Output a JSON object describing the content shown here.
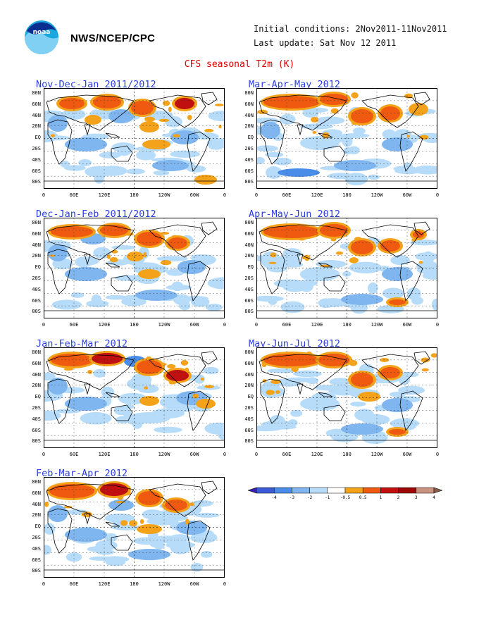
{
  "header": {
    "org": "NWS/NCEP/CPC",
    "initial_conditions": "Initial conditions: 2Nov2011-11Nov2011",
    "last_update": "Last update: Sat Nov 12 2011",
    "title": "CFS seasonal T2m (K)"
  },
  "logo": {
    "text": "noaa"
  },
  "axes": {
    "lat_ticks": [
      "80N",
      "60N",
      "40N",
      "20N",
      "EQ",
      "20S",
      "40S",
      "60S",
      "80S"
    ],
    "lon_ticks": [
      "0",
      "60E",
      "120E",
      "180",
      "120W",
      "60W",
      "0"
    ]
  },
  "panels": [
    {
      "title": "Nov-Dec-Jan 2011/2012"
    },
    {
      "title": "Dec-Jan-Feb 2011/2012"
    },
    {
      "title": "Jan-Feb-Mar 2012"
    },
    {
      "title": "Feb-Mar-Apr 2012"
    },
    {
      "title": "Mar-Apr-May 2012"
    },
    {
      "title": "Apr-May-Jun 2012"
    },
    {
      "title": "May-Jun-Jul 2012"
    }
  ],
  "colorbar": {
    "labels": [
      "-4",
      "-3",
      "-2",
      "-1",
      "-0.5",
      "0.5",
      "1",
      "2",
      "3",
      "4"
    ],
    "colors": [
      "#3a1fb0",
      "#3c5ad8",
      "#4a8de8",
      "#7fb6f0",
      "#b7dcfa",
      "#ffffff",
      "#f3a21a",
      "#ef5a10",
      "#c01010",
      "#9c0808",
      "#c89480",
      "#8a5a4a"
    ]
  },
  "anomaly_colors": {
    "warm1": "#f3a21a",
    "warm2": "#ef5a10",
    "warm3": "#c01010",
    "cool1": "#b7dcfa",
    "cool2": "#7fb6f0",
    "cool3": "#4a8de8"
  }
}
